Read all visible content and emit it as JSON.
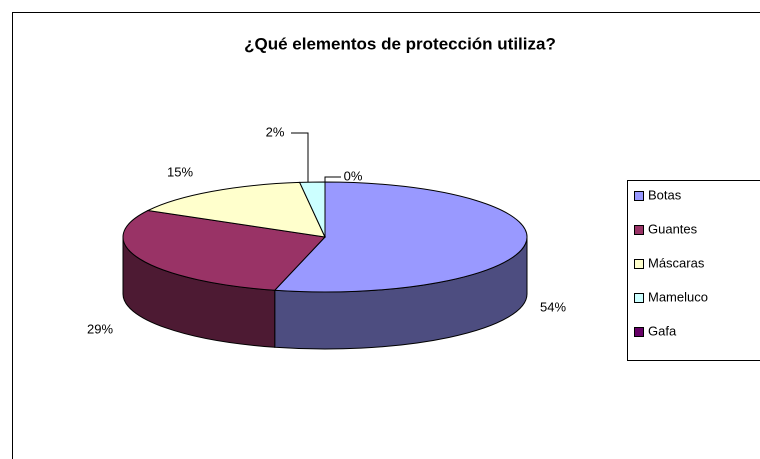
{
  "chart_data": {
    "type": "pie3d",
    "title": "¿Qué elementos de protección utiliza?",
    "categories": [
      "Botas",
      "Guantes",
      "Máscaras",
      "Mameluco",
      "Gafa"
    ],
    "values": [
      54,
      29,
      15,
      2,
      0
    ],
    "value_labels": [
      "54%",
      "29%",
      "15%",
      "2%",
      "0%"
    ],
    "colors": [
      "#9999ff",
      "#993366",
      "#ffffcc",
      "#ccffff",
      "#660066"
    ],
    "legend": "right"
  }
}
